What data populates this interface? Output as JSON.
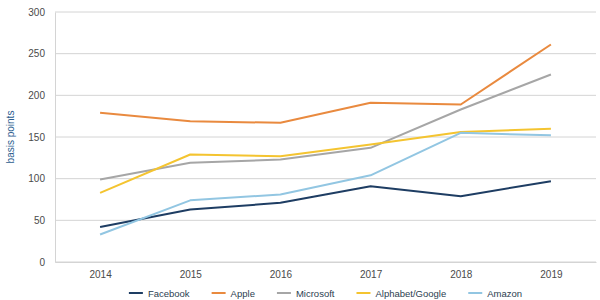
{
  "chart_data": {
    "type": "line",
    "y_label": "basis points",
    "categories": [
      "2014",
      "2015",
      "2016",
      "2017",
      "2018",
      "2019"
    ],
    "series": [
      {
        "name": "Facebook",
        "color": "#1e3d63",
        "values": [
          42,
          63,
          71,
          91,
          79,
          97
        ]
      },
      {
        "name": "Apple",
        "color": "#e98a3f",
        "values": [
          179,
          169,
          167,
          191,
          189,
          261
        ]
      },
      {
        "name": "Microsoft",
        "color": "#a6a6a6",
        "values": [
          99,
          119,
          123,
          137,
          183,
          225
        ]
      },
      {
        "name": "Alphabet/Google",
        "color": "#f4c430",
        "values": [
          83,
          129,
          127,
          141,
          156,
          160
        ]
      },
      {
        "name": "Amazon",
        "color": "#92c6e2",
        "values": [
          33,
          74,
          81,
          104,
          155,
          152
        ]
      }
    ],
    "ylim": [
      0,
      300
    ],
    "yticks": [
      0,
      50,
      100,
      150,
      200,
      250,
      300
    ],
    "grid": true,
    "legend": "bottom"
  }
}
